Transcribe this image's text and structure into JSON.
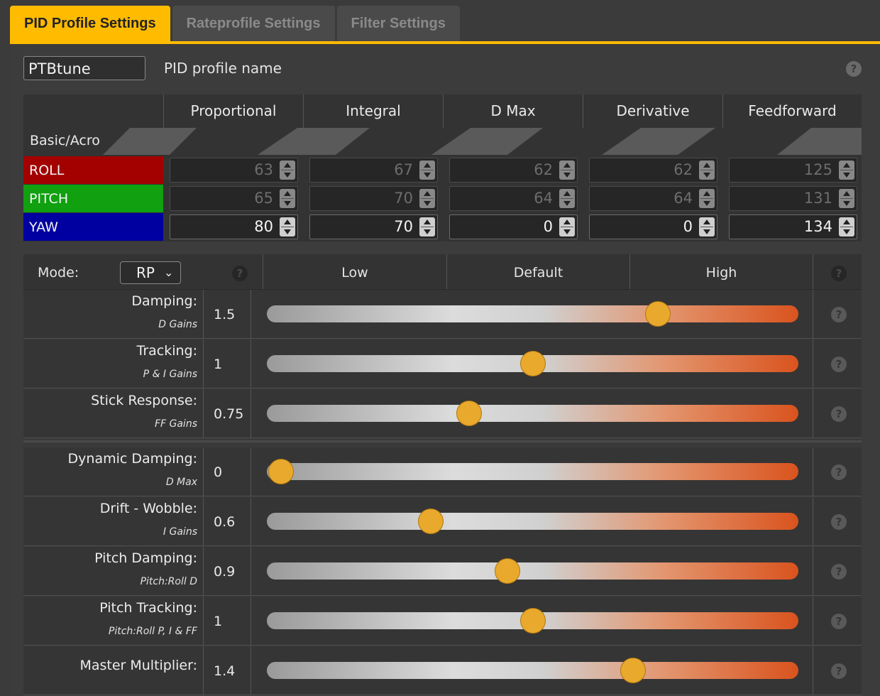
{
  "tabs": [
    "PID Profile Settings",
    "Rateprofile Settings",
    "Filter Settings"
  ],
  "profile": {
    "name_value": "PTBtune",
    "name_label": "PID profile name"
  },
  "pid_table": {
    "corner_label": "Basic/Acro",
    "columns": [
      "Proportional",
      "Integral",
      "D Max",
      "Derivative",
      "Feedforward"
    ],
    "rows": [
      {
        "axis": "ROLL",
        "color": "#a30000",
        "values": [
          "63",
          "67",
          "62",
          "62",
          "125"
        ],
        "active": false
      },
      {
        "axis": "PITCH",
        "color": "#10a010",
        "values": [
          "65",
          "70",
          "64",
          "64",
          "131"
        ],
        "active": false
      },
      {
        "axis": "YAW",
        "color": "#0000a0",
        "values": [
          "80",
          "70",
          "0",
          "0",
          "134"
        ],
        "active": true
      }
    ]
  },
  "sliders": {
    "mode_label": "Mode:",
    "mode_value": "RP",
    "columns": [
      "Low",
      "Default",
      "High"
    ],
    "rows": [
      {
        "label": "Damping:",
        "sub": "D Gains",
        "value": "1.5",
        "level": 0.735
      },
      {
        "label": "Tracking:",
        "sub": "P & I Gains",
        "value": "1",
        "level": 0.5
      },
      {
        "label": "Stick Response:",
        "sub": "FF Gains",
        "value": "0.75",
        "level": 0.38
      },
      {
        "label": "Dynamic Damping:",
        "sub": "D Max",
        "value": "0",
        "level": 0.027
      },
      {
        "label": "Drift - Wobble:",
        "sub": "I Gains",
        "value": "0.6",
        "level": 0.309
      },
      {
        "label": "Pitch Damping:",
        "sub": "Pitch:Roll D",
        "value": "0.9",
        "level": 0.453
      },
      {
        "label": "Pitch Tracking:",
        "sub": "Pitch:Roll P, I & FF",
        "value": "1",
        "level": 0.5
      },
      {
        "label": "Master Multiplier:",
        "sub": "",
        "value": "1.4",
        "level": 0.689
      }
    ]
  },
  "colors": {
    "accent": "#ffbb00",
    "thumb": "#e9a92c"
  },
  "help_icon": "?"
}
